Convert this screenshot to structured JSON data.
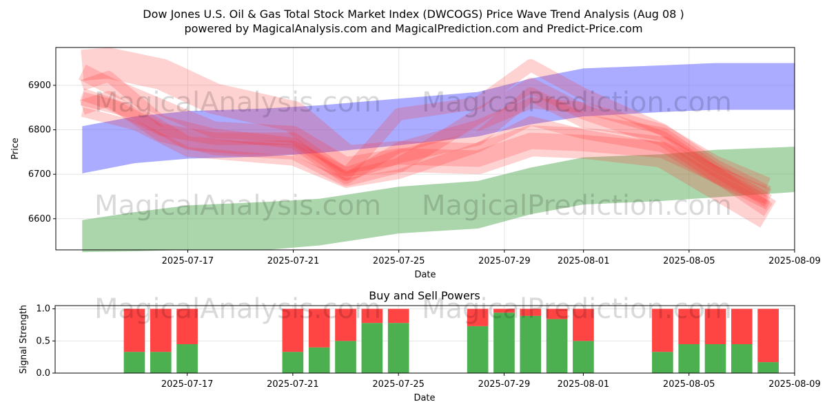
{
  "title_line1": "Dow Jones U.S. Oil & Gas Total Stock Market Index (DWCOGS) Price Wave Trend Analysis (Aug 08 )",
  "title_line2": "powered by MagicalAnalysis.com and MagicalPrediction.com and Predict-Price.com",
  "watermarks": [
    "MagicalAnalysis.com",
    "MagicalPrediction.com"
  ],
  "colors": {
    "blue_band": "#6666ff",
    "green_band": "#66b266",
    "red_band": "#ff3333",
    "buy": "#4caf50",
    "sell": "#ff4444"
  },
  "chart_data": [
    {
      "type": "area",
      "title": "Price Wave Trend Analysis",
      "xlabel": "Date",
      "ylabel": "Price",
      "xlim": [
        "2025-07-12",
        "2025-08-09"
      ],
      "ylim": [
        6530,
        6985
      ],
      "xticks": [
        "2025-07-17",
        "2025-07-21",
        "2025-07-25",
        "2025-07-29",
        "2025-08-01",
        "2025-08-05",
        "2025-08-09"
      ],
      "yticks": [
        6600,
        6700,
        6800,
        6900
      ],
      "grid": true,
      "series": [
        {
          "name": "upper trend band",
          "color": "#6666ff",
          "x": [
            "2025-07-13",
            "2025-07-15",
            "2025-07-17",
            "2025-07-20",
            "2025-07-22",
            "2025-07-25",
            "2025-07-28",
            "2025-07-30",
            "2025-08-01",
            "2025-08-04",
            "2025-08-06",
            "2025-08-09"
          ],
          "upper": [
            6808,
            6830,
            6842,
            6848,
            6855,
            6870,
            6885,
            6915,
            6938,
            6945,
            6950,
            6950
          ],
          "lower": [
            6702,
            6725,
            6735,
            6740,
            6748,
            6765,
            6785,
            6812,
            6830,
            6840,
            6845,
            6845
          ]
        },
        {
          "name": "lower trend band",
          "color": "#66b266",
          "x": [
            "2025-07-13",
            "2025-07-15",
            "2025-07-17",
            "2025-07-20",
            "2025-07-22",
            "2025-07-25",
            "2025-07-28",
            "2025-07-30",
            "2025-08-01",
            "2025-08-04",
            "2025-08-06",
            "2025-08-09"
          ],
          "upper": [
            6597,
            6615,
            6630,
            6638,
            6645,
            6672,
            6685,
            6715,
            6738,
            6745,
            6755,
            6762
          ],
          "lower": [
            6525,
            6527,
            6530,
            6530,
            6540,
            6567,
            6578,
            6610,
            6632,
            6640,
            6648,
            6660
          ]
        }
      ],
      "waves": [
        {
          "x": [
            "2025-07-13",
            "2025-07-14",
            "2025-07-16",
            "2025-07-18",
            "2025-07-21",
            "2025-07-23",
            "2025-07-25",
            "2025-07-28",
            "2025-07-30",
            "2025-08-01",
            "2025-08-04",
            "2025-08-06",
            "2025-08-08"
          ],
          "y": [
            6945,
            6950,
            6925,
            6870,
            6830,
            6730,
            6740,
            6735,
            6775,
            6770,
            6750,
            6680,
            6610
          ],
          "width": 45
        },
        {
          "x": [
            "2025-07-13",
            "2025-07-14",
            "2025-07-16",
            "2025-07-18",
            "2025-07-21",
            "2025-07-23",
            "2025-07-25",
            "2025-07-28",
            "2025-07-30",
            "2025-08-01",
            "2025-08-04",
            "2025-08-06",
            "2025-08-08"
          ],
          "y": [
            6930,
            6900,
            6850,
            6800,
            6790,
            6720,
            6740,
            6735,
            6775,
            6770,
            6755,
            6700,
            6650
          ],
          "width": 24
        },
        {
          "x": [
            "2025-07-13",
            "2025-07-14",
            "2025-07-16",
            "2025-07-18",
            "2025-07-21",
            "2025-07-23",
            "2025-07-25",
            "2025-07-28",
            "2025-07-30",
            "2025-08-01",
            "2025-08-04",
            "2025-08-06",
            "2025-08-08"
          ],
          "y": [
            6880,
            6860,
            6800,
            6780,
            6780,
            6700,
            6835,
            6860,
            6945,
            6880,
            6800,
            6720,
            6660
          ],
          "width": 18
        },
        {
          "x": [
            "2025-07-13",
            "2025-07-14",
            "2025-07-16",
            "2025-07-18",
            "2025-07-21",
            "2025-07-23",
            "2025-07-25",
            "2025-07-28",
            "2025-07-30",
            "2025-08-01",
            "2025-08-04",
            "2025-08-06",
            "2025-08-08"
          ],
          "y": [
            6850,
            6870,
            6790,
            6760,
            6750,
            6690,
            6720,
            6830,
            6900,
            6840,
            6780,
            6700,
            6620
          ],
          "width": 22
        },
        {
          "x": [
            "2025-07-13",
            "2025-07-14",
            "2025-07-16",
            "2025-07-18",
            "2025-07-21",
            "2025-07-23",
            "2025-07-25",
            "2025-07-28",
            "2025-07-30",
            "2025-08-01",
            "2025-08-04",
            "2025-08-06",
            "2025-08-08"
          ],
          "y": [
            6900,
            6920,
            6820,
            6790,
            6770,
            6690,
            6760,
            6810,
            6860,
            6850,
            6800,
            6730,
            6680
          ],
          "width": 16
        },
        {
          "x": [
            "2025-07-13",
            "2025-07-15",
            "2025-07-17",
            "2025-07-19",
            "2025-07-21",
            "2025-07-23",
            "2025-07-25",
            "2025-07-28",
            "2025-07-30",
            "2025-08-01",
            "2025-08-04",
            "2025-08-06",
            "2025-08-08"
          ],
          "y": [
            6870,
            6840,
            6770,
            6760,
            6760,
            6700,
            6740,
            6780,
            6880,
            6820,
            6790,
            6710,
            6640
          ],
          "width": 20
        },
        {
          "x": [
            "2025-07-13",
            "2025-07-15",
            "2025-07-17",
            "2025-07-19",
            "2025-07-21",
            "2025-07-23",
            "2025-07-25",
            "2025-07-28",
            "2025-07-30",
            "2025-08-01",
            "2025-08-04",
            "2025-08-06",
            "2025-08-08"
          ],
          "y": [
            6840,
            6810,
            6750,
            6740,
            6730,
            6680,
            6700,
            6760,
            6820,
            6790,
            6760,
            6690,
            6630
          ],
          "width": 14
        }
      ]
    },
    {
      "type": "bar",
      "title": "Buy and Sell Powers",
      "xlabel": "Date",
      "ylabel": "Signal Strength",
      "ylim": [
        0,
        1.05
      ],
      "yticks": [
        0.0,
        0.5,
        1.0
      ],
      "xticks": [
        "2025-07-17",
        "2025-07-21",
        "2025-07-25",
        "2025-07-29",
        "2025-08-01",
        "2025-08-05",
        "2025-08-09"
      ],
      "dates": [
        "2025-07-15",
        "2025-07-16",
        "2025-07-17",
        "2025-07-21",
        "2025-07-22",
        "2025-07-23",
        "2025-07-24",
        "2025-07-25",
        "2025-07-28",
        "2025-07-29",
        "2025-07-30",
        "2025-07-31",
        "2025-08-01",
        "2025-08-04",
        "2025-08-05",
        "2025-08-06",
        "2025-08-07",
        "2025-08-08"
      ],
      "series": [
        {
          "name": "Buy",
          "color": "#4caf50",
          "values": [
            0.33,
            0.33,
            0.45,
            0.33,
            0.4,
            0.5,
            0.78,
            0.78,
            0.73,
            0.94,
            0.89,
            0.84,
            0.5,
            0.33,
            0.45,
            0.45,
            0.45,
            0.17
          ]
        },
        {
          "name": "Sell",
          "color": "#ff4444",
          "values": [
            0.67,
            0.67,
            0.55,
            0.67,
            0.6,
            0.5,
            0.22,
            0.22,
            0.27,
            0.06,
            0.11,
            0.16,
            0.5,
            0.67,
            0.55,
            0.55,
            0.55,
            0.83
          ]
        }
      ]
    }
  ]
}
